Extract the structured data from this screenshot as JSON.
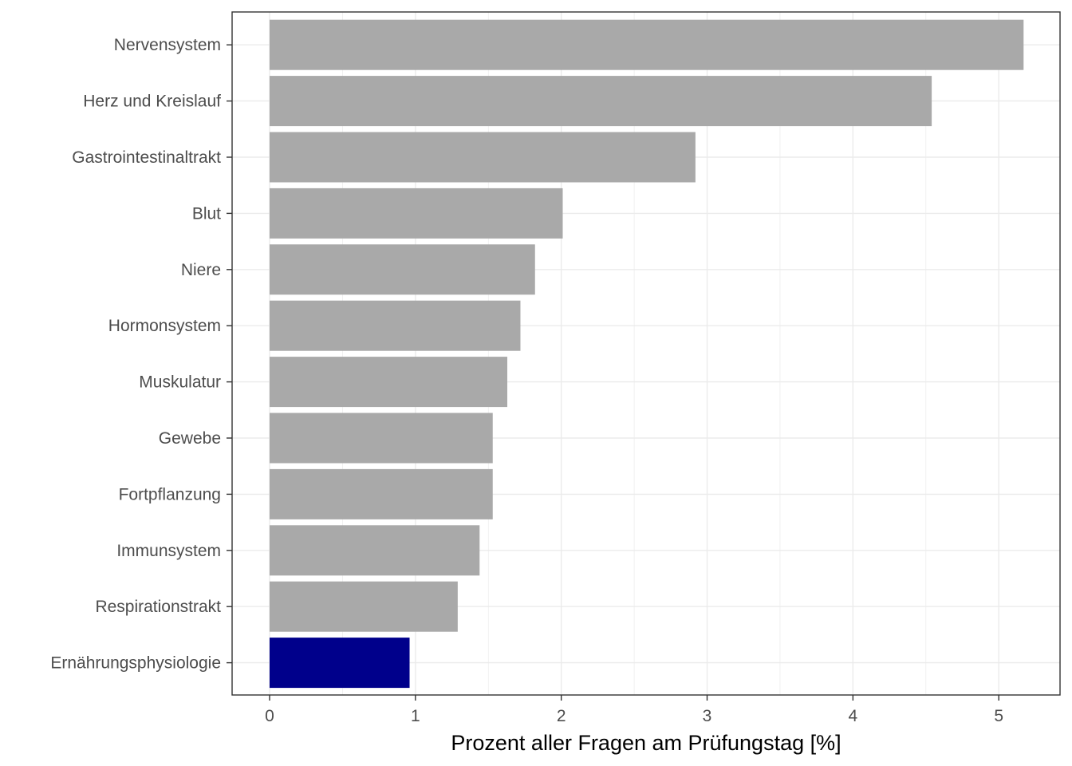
{
  "chart_data": {
    "type": "bar",
    "orientation": "horizontal",
    "categories": [
      "Nervensystem",
      "Herz und Kreislauf",
      "Gastrointestinaltrakt",
      "Blut",
      "Niere",
      "Hormonsystem",
      "Muskulatur",
      "Gewebe",
      "Fortpflanzung",
      "Immunsystem",
      "Respirationstrakt",
      "Ernährungsphysiologie"
    ],
    "values": [
      5.17,
      4.54,
      2.92,
      2.01,
      1.82,
      1.72,
      1.63,
      1.53,
      1.53,
      1.44,
      1.29,
      0.96
    ],
    "highlight_category": "Ernährungsphysiologie",
    "xlabel": "Prozent aller Fragen am Prüfungstag [%]",
    "ylabel": "",
    "title": "",
    "xlim": [
      -0.257,
      5.42
    ],
    "x_ticks": [
      0,
      1,
      2,
      3,
      4,
      5
    ],
    "grid": true,
    "colors": {
      "bar": "#a9a9a9",
      "highlight": "#00008b",
      "grid": "#ebebeb",
      "panel_border": "#333333",
      "tick_text": "#4d4d4d"
    }
  }
}
